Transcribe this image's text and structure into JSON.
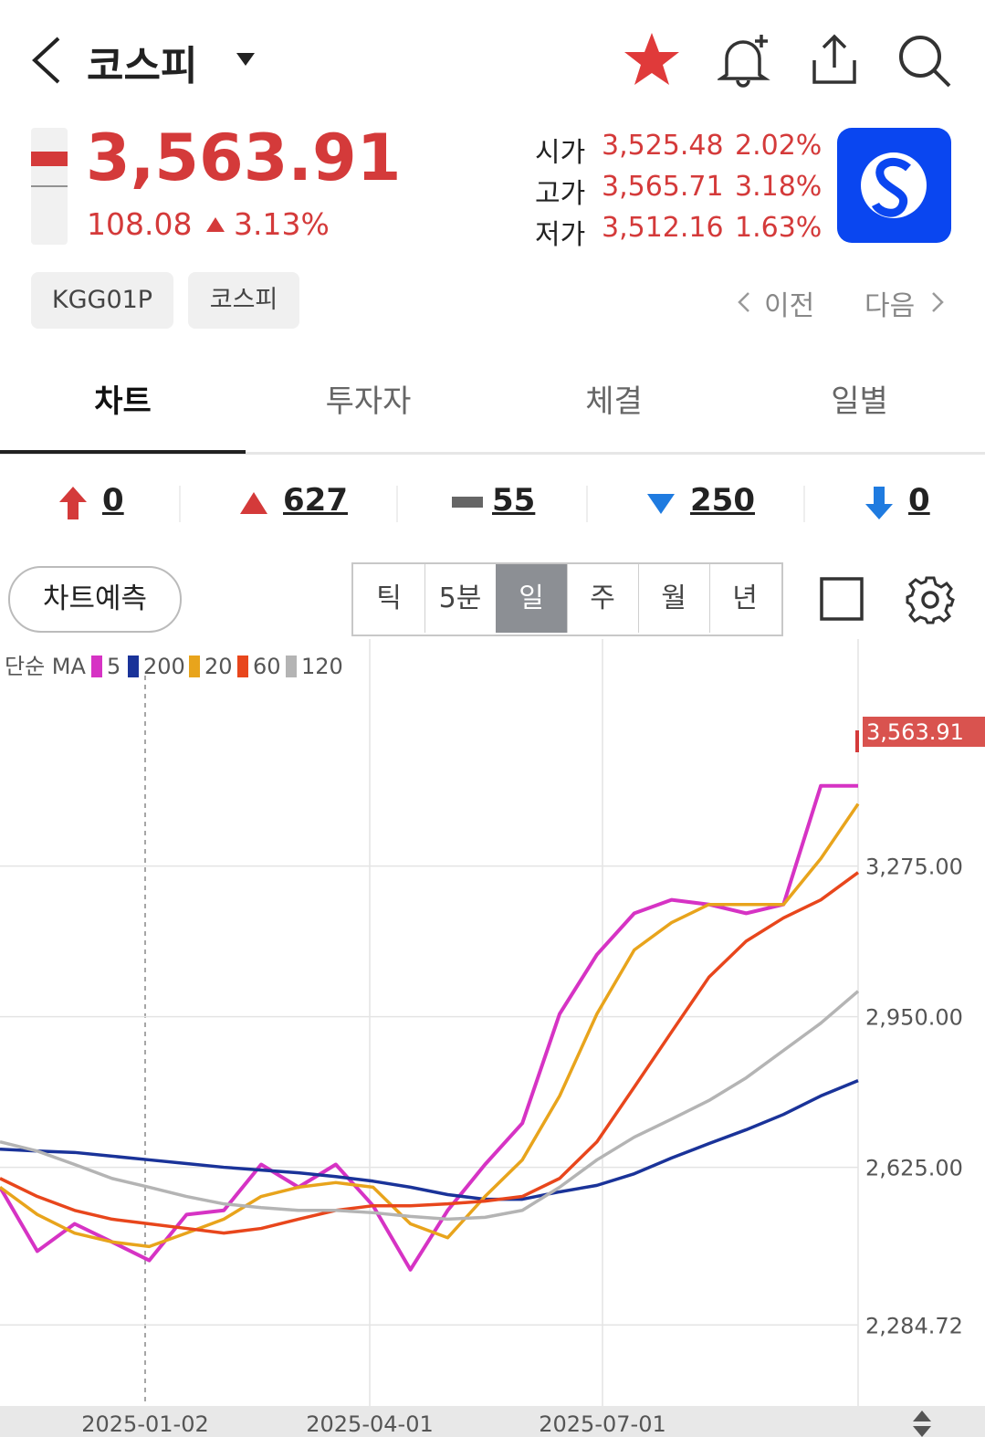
{
  "header": {
    "title": "코스피"
  },
  "quote": {
    "price": "3,563.91",
    "change": "108.08",
    "change_pct": "3.13%",
    "open": {
      "label": "시가",
      "value": "3,525.48",
      "pct": "2.02%"
    },
    "high": {
      "label": "고가",
      "value": "3,565.71",
      "pct": "3.18%"
    },
    "low": {
      "label": "저가",
      "value": "3,512.16",
      "pct": "1.63%"
    }
  },
  "tags": [
    "KGG01P",
    "코스피"
  ],
  "nav": {
    "prev": "이전",
    "next": "다음"
  },
  "tabs": [
    "차트",
    "투자자",
    "체결",
    "일별"
  ],
  "breadth": [
    "0",
    "627",
    "55",
    "250",
    "0"
  ],
  "chart_controls": {
    "forecast": "차트예측",
    "periods": [
      "틱",
      "5분",
      "일",
      "주",
      "월",
      "년"
    ]
  },
  "chart_data": {
    "type": "line",
    "legend_title": "단순 MA",
    "series": [
      {
        "name": "5",
        "color": "#d633c4",
        "values": [
          2582,
          2444,
          2503,
          2464,
          2424,
          2523,
          2532,
          2631,
          2582,
          2631,
          2542,
          2404,
          2532,
          2631,
          2720,
          2956,
          3084,
          3173,
          3202,
          3192,
          3173,
          3192,
          3448,
          3448
        ]
      },
      {
        "name": "200",
        "color": "#1a3399",
        "values": [
          2664,
          2660,
          2657,
          2649,
          2641,
          2633,
          2625,
          2619,
          2613,
          2605,
          2595,
          2582,
          2566,
          2556,
          2556,
          2572,
          2586,
          2611,
          2645,
          2676,
          2706,
          2739,
          2779,
          2812
        ]
      },
      {
        "name": "20",
        "color": "#e8a41c",
        "values": [
          2582,
          2523,
          2483,
          2464,
          2454,
          2483,
          2513,
          2562,
          2582,
          2592,
          2582,
          2503,
          2473,
          2562,
          2641,
          2779,
          2956,
          3094,
          3153,
          3192,
          3192,
          3192,
          3291,
          3409
        ]
      },
      {
        "name": "60",
        "color": "#e8461c",
        "values": [
          2601,
          2562,
          2532,
          2513,
          2503,
          2493,
          2483,
          2493,
          2513,
          2532,
          2542,
          2542,
          2546,
          2552,
          2562,
          2601,
          2680,
          2798,
          2917,
          3035,
          3113,
          3163,
          3202,
          3261
        ]
      },
      {
        "name": "120",
        "color": "#b4b4b4",
        "values": [
          2680,
          2660,
          2631,
          2601,
          2582,
          2562,
          2546,
          2538,
          2532,
          2532,
          2527,
          2519,
          2513,
          2517,
          2532,
          2582,
          2641,
          2690,
          2729,
          2769,
          2818,
          2877,
          2936,
          3005
        ]
      }
    ],
    "ylim": [
      2110,
      3745
    ],
    "yticks": [
      {
        "value": 2284.72,
        "label": "2,284.72"
      },
      {
        "value": 2625,
        "label": "2,625.00"
      },
      {
        "value": 2950,
        "label": "2,950.00"
      },
      {
        "value": 3275,
        "label": "3,275.00"
      }
    ],
    "xticks": [
      "2025-01-02",
      "2025-04-01",
      "2025-07-01"
    ],
    "grid": true
  }
}
